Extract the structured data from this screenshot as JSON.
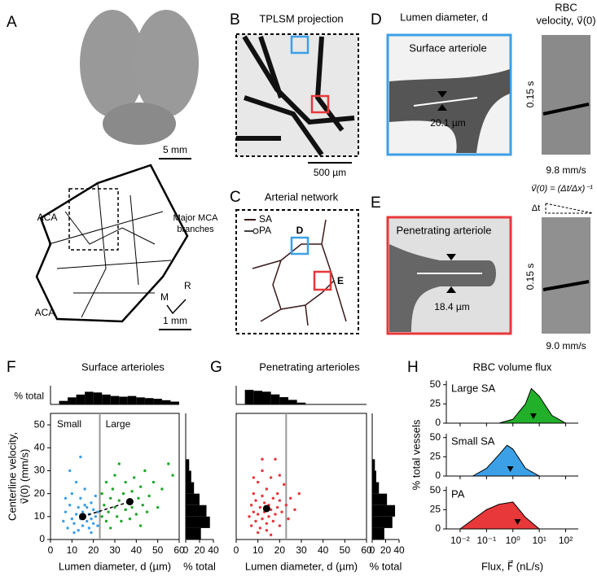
{
  "panel_labels": [
    "A",
    "B",
    "C",
    "D",
    "E",
    "F",
    "G",
    "H"
  ],
  "A": {
    "scale_top": "5 mm",
    "scale_bottom": "1 mm",
    "aca": [
      "ACA",
      "ACA"
    ],
    "mca": [
      "Major MCA",
      "branches"
    ],
    "compass": [
      "M",
      "R"
    ]
  },
  "B": {
    "title": "TPLSM projection",
    "scale": "500 µm"
  },
  "C": {
    "title": "Arterial network",
    "legend": [
      "SA",
      "PA"
    ],
    "boxes": [
      "D",
      "E"
    ]
  },
  "D": {
    "title": "Lumen diameter, d",
    "header": [
      "RBC",
      "velocity, v⃗(0)"
    ],
    "label": "Surface arteriole",
    "diameter": "20.1 µm",
    "time": "0.15 s",
    "speed": "9.8 mm/s"
  },
  "formula": {
    "text": "v⃗(0) = (Δt/Δx)⁻¹",
    "dt": "Δt",
    "dx": "Δx"
  },
  "E": {
    "label": "Penetrating arteriole",
    "diameter": "18.4 µm",
    "time": "0.15 s",
    "speed": "9.0 mm/s"
  },
  "chart_data": [
    {
      "type": "scatter",
      "title": "Surface arterioles",
      "xlabel": "Lumen diameter, d (µm)",
      "ylabel": [
        "Centerline velocity,",
        "v⃗(0) (mm/s)"
      ],
      "xlim": [
        0,
        60
      ],
      "xticks": [
        0,
        10,
        20,
        30,
        40,
        50,
        60
      ],
      "ylim": [
        0,
        55
      ],
      "yticks": [
        0,
        10,
        20,
        30,
        40,
        50
      ],
      "threshold": 23,
      "series": [
        {
          "name": "Small",
          "color": "#3ca0e6",
          "x": [
            6,
            7,
            8,
            9,
            10,
            10,
            11,
            12,
            12,
            13,
            13,
            14,
            14,
            15,
            15,
            16,
            16,
            17,
            17,
            18,
            18,
            19,
            19,
            20,
            20,
            21,
            21,
            22,
            22,
            9,
            14,
            11,
            16,
            19,
            7
          ],
          "y": [
            8,
            12,
            5,
            15,
            9,
            20,
            7,
            11,
            25,
            4,
            14,
            9,
            18,
            6,
            12,
            10,
            22,
            8,
            14,
            5,
            11,
            16,
            9,
            7,
            13,
            19,
            10,
            6,
            12,
            30,
            36,
            3,
            15,
            3,
            18
          ]
        },
        {
          "name": "Large",
          "color": "#22a82a",
          "x": [
            24,
            24,
            25,
            26,
            26,
            27,
            28,
            28,
            29,
            30,
            30,
            31,
            32,
            32,
            33,
            34,
            35,
            35,
            36,
            37,
            38,
            38,
            39,
            40,
            41,
            42,
            43,
            44,
            45,
            46,
            48,
            50,
            52,
            55,
            57,
            42
          ],
          "y": [
            10,
            20,
            15,
            8,
            25,
            12,
            18,
            5,
            22,
            14,
            28,
            10,
            17,
            33,
            8,
            20,
            13,
            25,
            16,
            9,
            21,
            14,
            27,
            11,
            18,
            23,
            15,
            30,
            12,
            19,
            25,
            14,
            22,
            33,
            28,
            6
          ]
        }
      ],
      "means": {
        "x": [
          15,
          37
        ],
        "y": [
          10,
          16.5
        ]
      },
      "top_hist": {
        "ylabel": "% total",
        "ylim": [
          0,
          22
        ],
        "bins": [
          4,
          8,
          12,
          16,
          20,
          24,
          28,
          32,
          36,
          40,
          44,
          48,
          52,
          56,
          60
        ],
        "values": [
          5,
          10,
          14,
          18,
          17,
          14,
          12,
          11,
          12,
          10,
          9,
          8,
          6,
          4
        ]
      },
      "right_hist": {
        "xlabel": "% total",
        "xlim": [
          0,
          40
        ],
        "xticks": [
          0,
          20,
          40
        ],
        "bins": [
          0,
          5,
          10,
          15,
          20,
          25,
          30,
          35
        ],
        "values": [
          22,
          35,
          30,
          20,
          12,
          8,
          5
        ]
      }
    },
    {
      "type": "scatter",
      "title": "Penetrating arterioles",
      "xlabel": "Lumen diameter, d (µm)",
      "xlim": [
        0,
        60
      ],
      "xticks": [
        0,
        10,
        20,
        30,
        40,
        50,
        60
      ],
      "ylim": [
        0,
        55
      ],
      "threshold": 23,
      "series": [
        {
          "color": "#e8383a",
          "x": [
            6,
            7,
            7,
            8,
            8,
            9,
            9,
            10,
            10,
            11,
            11,
            12,
            12,
            12,
            13,
            13,
            14,
            14,
            15,
            15,
            16,
            16,
            17,
            17,
            18,
            18,
            19,
            19,
            20,
            20,
            21,
            22,
            23,
            24,
            25,
            27,
            29,
            10,
            14,
            16,
            8,
            20,
            12
          ],
          "y": [
            10,
            6,
            15,
            12,
            20,
            8,
            17,
            11,
            25,
            5,
            14,
            9,
            19,
            30,
            12,
            16,
            7,
            22,
            10,
            15,
            13,
            27,
            8,
            18,
            11,
            35,
            14,
            20,
            6,
            17,
            12,
            24,
            15,
            9,
            18,
            13,
            20,
            3,
            4,
            2,
            27,
            28,
            35
          ]
        }
      ],
      "means": {
        "x": [
          14
        ],
        "y": [
          13.5
        ]
      },
      "top_hist": {
        "ylim": [
          0,
          34
        ],
        "bins": [
          4,
          8,
          12,
          16,
          20,
          24,
          28,
          32
        ],
        "values": [
          32,
          30,
          28,
          22,
          16,
          10,
          4
        ]
      },
      "right_hist": {
        "xlabel": "% total",
        "xlim": [
          0,
          40
        ],
        "xticks": [
          0,
          20,
          40
        ],
        "bins": [
          0,
          5,
          10,
          15,
          20,
          25,
          30,
          35
        ],
        "values": [
          18,
          30,
          34,
          22,
          10,
          6,
          4
        ]
      }
    },
    {
      "type": "area",
      "title": "RBC volume flux",
      "xlabel": "Flux, F⃗ (nL/s)",
      "ylabel": "% total vessels",
      "xlog": true,
      "xlim": [
        0.003,
        300
      ],
      "xticks": [
        {
          "value": 0.01,
          "label": "10⁻²"
        },
        {
          "value": 0.1,
          "label": "10⁻¹"
        },
        {
          "value": 1,
          "label": "10⁰"
        },
        {
          "value": 10,
          "label": "10¹"
        },
        {
          "value": 100,
          "label": "10²"
        }
      ],
      "ylim": [
        0,
        55
      ],
      "yticks": [
        0,
        25,
        50
      ],
      "series": [
        {
          "name": "Large SA",
          "color": "#22b02a",
          "x": [
            0.3,
            1,
            3,
            5,
            10,
            30,
            100
          ],
          "y": [
            0,
            5,
            25,
            45,
            35,
            10,
            0
          ],
          "median": 6
        },
        {
          "name": "Small SA",
          "color": "#3ca0e6",
          "x": [
            0.03,
            0.1,
            0.3,
            0.6,
            1,
            3,
            10
          ],
          "y": [
            0,
            10,
            28,
            40,
            35,
            10,
            0
          ],
          "median": 0.8
        },
        {
          "name": "PA",
          "color": "#e8383a",
          "x": [
            0.01,
            0.03,
            0.1,
            0.3,
            1,
            3,
            10
          ],
          "y": [
            0,
            12,
            25,
            32,
            35,
            15,
            0
          ],
          "median": 1.5
        }
      ]
    }
  ]
}
